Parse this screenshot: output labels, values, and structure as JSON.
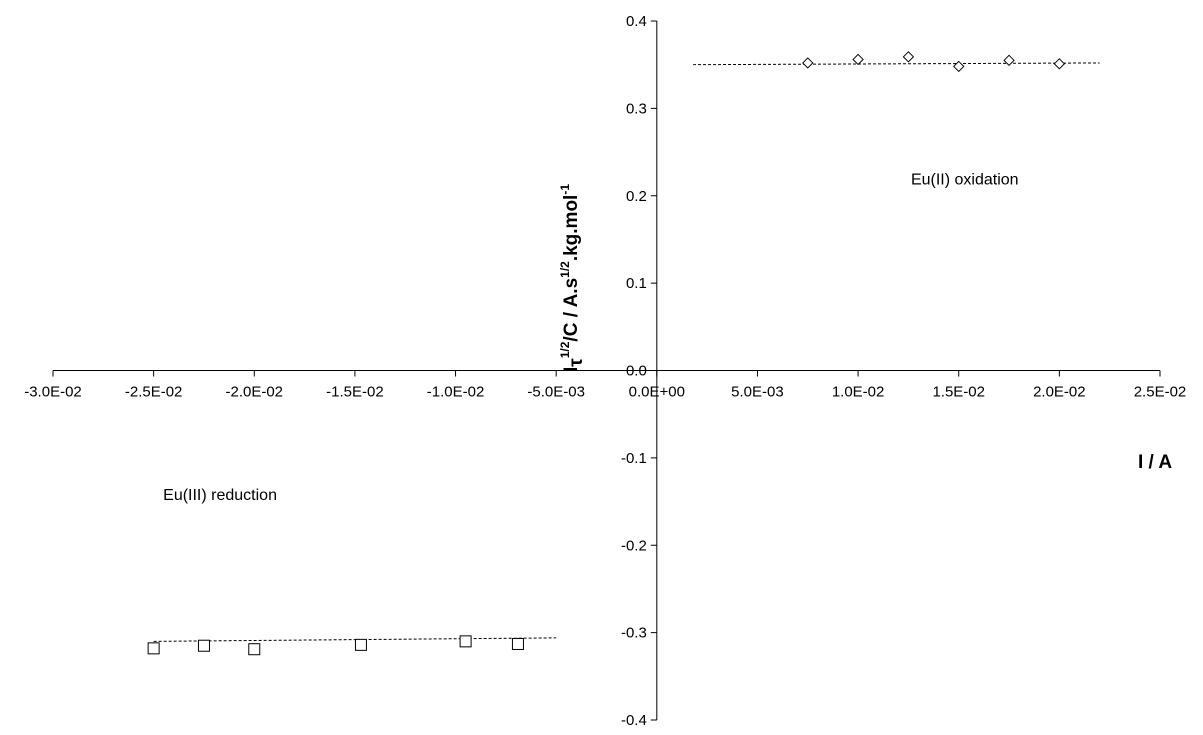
{
  "chart_data": {
    "type": "scatter",
    "title": "",
    "xlabel": "I / A",
    "ylabel": {
      "parts": [
        {
          "text": "I",
          "style": "base"
        },
        {
          "text": "τ",
          "style": "sub"
        },
        {
          "text": "1/2",
          "style": "sup"
        },
        {
          "text": "/C / A.s",
          "style": "base"
        },
        {
          "text": "1/2",
          "style": "sup"
        },
        {
          "text": ".kg.mol",
          "style": "base"
        },
        {
          "text": "-1",
          "style": "sup"
        }
      ]
    },
    "xlim": [
      -0.03,
      0.025
    ],
    "ylim": [
      -0.4,
      0.4
    ],
    "x_ticks": [
      -0.03,
      -0.025,
      -0.02,
      -0.015,
      -0.01,
      -0.005,
      0.0,
      0.005,
      0.01,
      0.015,
      0.02,
      0.025
    ],
    "x_tick_labels": [
      "-3.0E-02",
      "-2.5E-02",
      "-2.0E-02",
      "-1.5E-02",
      "-1.0E-02",
      "-5.0E-03",
      "0.0E+00",
      "5.0E-03",
      "1.0E-02",
      "1.5E-02",
      "2.0E-02",
      "2.5E-02"
    ],
    "y_ticks": [
      0.4,
      0.3,
      0.2,
      0.1,
      0.0,
      -0.1,
      -0.2,
      -0.3,
      -0.4
    ],
    "y_tick_labels": [
      "0.4",
      "0.3",
      "0.2",
      "0.1",
      "0.0",
      "-0.1",
      "-0.2",
      "-0.3",
      "-0.4"
    ],
    "grid": false,
    "legend": "none",
    "series": [
      {
        "marker": "diamond",
        "color": "#000000",
        "x": [
          0.0075,
          0.01,
          0.0125,
          0.015,
          0.0175,
          0.02
        ],
        "y": [
          0.352,
          0.356,
          0.359,
          0.348,
          0.355,
          0.351
        ]
      },
      {
        "marker": "square",
        "color": "#000000",
        "x": [
          -0.025,
          -0.0225,
          -0.02,
          -0.0147,
          -0.0095,
          -0.0069
        ],
        "y": [
          -0.318,
          -0.315,
          -0.319,
          -0.314,
          -0.31,
          -0.313
        ]
      }
    ],
    "trendlines": [
      {
        "style": "dashed",
        "x": [
          0.0018,
          0.022
        ],
        "y": [
          0.35,
          0.352
        ]
      },
      {
        "style": "dashed",
        "x": [
          -0.025,
          -0.005
        ],
        "y": [
          -0.31,
          -0.306
        ]
      }
    ],
    "annotations": [
      {
        "text": "Eu(II) oxidation",
        "x": 0.0153,
        "y": 0.213
      },
      {
        "text": "Eu(III) reduction",
        "x": -0.0217,
        "y": -0.148
      }
    ],
    "colors": {
      "axis": "#000000",
      "marker": "#000000",
      "background": "#ffffff"
    }
  }
}
